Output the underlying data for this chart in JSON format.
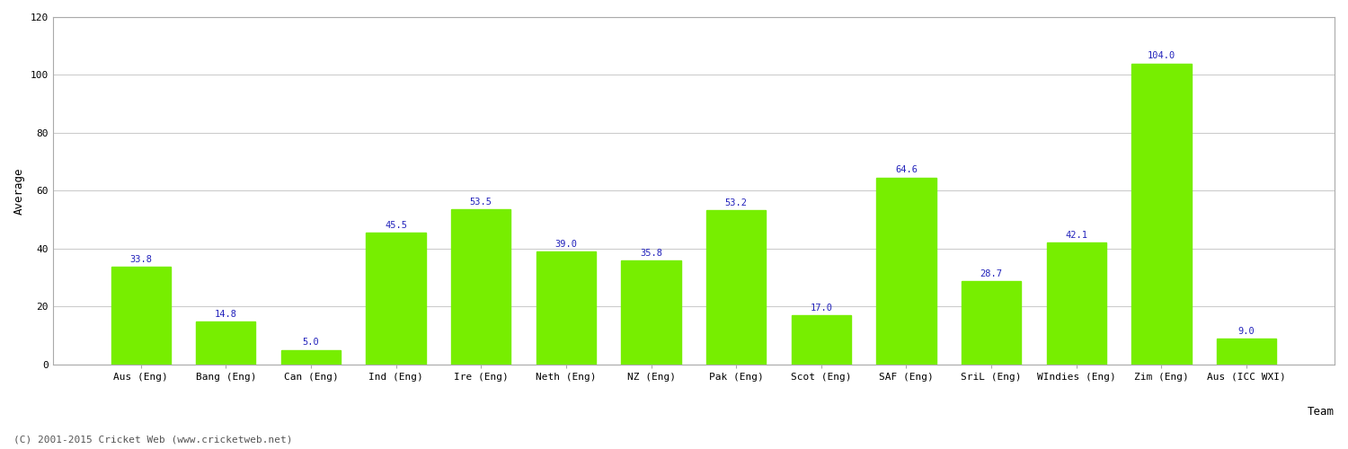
{
  "xlabel": "Team",
  "ylabel": "Average",
  "categories": [
    "Aus (Eng)",
    "Bang (Eng)",
    "Can (Eng)",
    "Ind (Eng)",
    "Ire (Eng)",
    "Neth (Eng)",
    "NZ (Eng)",
    "Pak (Eng)",
    "Scot (Eng)",
    "SAF (Eng)",
    "SriL (Eng)",
    "WIndies (Eng)",
    "Zim (Eng)",
    "Aus (ICC WXI)"
  ],
  "values": [
    33.8,
    14.8,
    5.0,
    45.5,
    53.5,
    39.0,
    35.8,
    53.2,
    17.0,
    64.6,
    28.7,
    42.1,
    104.0,
    9.0
  ],
  "bar_color": "#77ee00",
  "bar_edge_color": "#77ee00",
  "label_color": "#2222bb",
  "label_fontsize": 7.5,
  "ylabel_fontsize": 9,
  "xlabel_fontsize": 9,
  "tick_fontsize": 8,
  "ylim": [
    0,
    120
  ],
  "yticks": [
    0,
    20,
    40,
    60,
    80,
    100,
    120
  ],
  "grid_color": "#cccccc",
  "bg_color": "#ffffff",
  "outer_border_color": "#000000",
  "footer_text": "(C) 2001-2015 Cricket Web (www.cricketweb.net)",
  "footer_fontsize": 8,
  "footer_color": "#555555"
}
